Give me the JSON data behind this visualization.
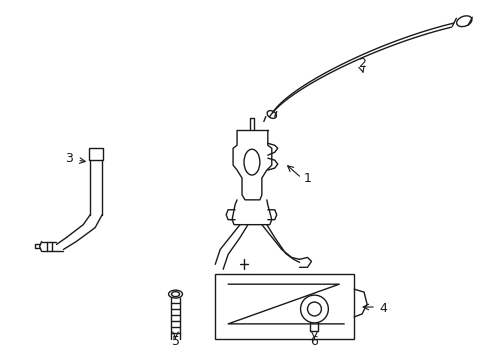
{
  "background_color": "#ffffff",
  "line_color": "#1a1a1a",
  "line_width": 1.0,
  "label_fontsize": 9,
  "figsize": [
    4.89,
    3.6
  ],
  "dpi": 100
}
